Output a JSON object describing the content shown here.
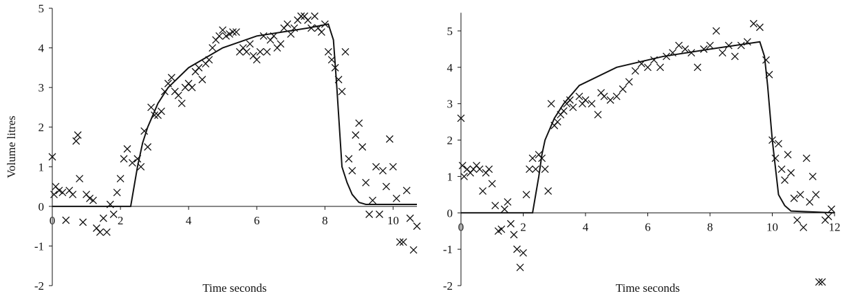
{
  "chart_data": [
    {
      "type": "scatter",
      "x_label": "Time seconds",
      "y_label": "Volume litres",
      "xlim": [
        0,
        10.7
      ],
      "ylim": [
        -2,
        5
      ],
      "xticks": [
        0,
        2,
        4,
        6,
        8,
        10
      ],
      "yticks": [
        -2,
        -1,
        0,
        1,
        2,
        3,
        4,
        5
      ],
      "color": "#111111",
      "series": [
        {
          "type": "scatter",
          "x": [
            0,
            0.05,
            0.1,
            0.2,
            0.3,
            0.4,
            0.5,
            0.6,
            0.7,
            0.75,
            0.8,
            0.9,
            1.0,
            1.1,
            1.2,
            1.3,
            1.4,
            1.5,
            1.6,
            1.7,
            1.8,
            1.9,
            2.0,
            2.1,
            2.2,
            2.35,
            2.5,
            2.6,
            2.7,
            2.8,
            2.9,
            3.0,
            3.1,
            3.2,
            3.3,
            3.4,
            3.5,
            3.6,
            3.7,
            3.8,
            3.9,
            4.0,
            4.1,
            4.2,
            4.3,
            4.4,
            4.5,
            4.6,
            4.7,
            4.8,
            4.9,
            5.0,
            5.1,
            5.2,
            5.3,
            5.4,
            5.5,
            5.6,
            5.7,
            5.8,
            5.9,
            6.0,
            6.1,
            6.2,
            6.3,
            6.4,
            6.5,
            6.6,
            6.7,
            6.8,
            6.9,
            7.0,
            7.1,
            7.2,
            7.3,
            7.4,
            7.5,
            7.6,
            7.7,
            7.8,
            7.9,
            8.0,
            8.1,
            8.2,
            8.3,
            8.4,
            8.5,
            8.6,
            8.7,
            8.8,
            8.9,
            9.0,
            9.1,
            9.2,
            9.3,
            9.4,
            9.5,
            9.6,
            9.7,
            9.8,
            9.9,
            10.0,
            10.1,
            10.2,
            10.3,
            10.4,
            10.5,
            10.6,
            10.7
          ],
          "values": [
            1.25,
            0.3,
            0.5,
            0.4,
            0.35,
            -0.35,
            0.4,
            0.3,
            1.65,
            1.8,
            0.7,
            -0.4,
            0.3,
            0.2,
            0.15,
            -0.55,
            -0.65,
            -0.3,
            -0.65,
            0.05,
            -0.2,
            0.35,
            0.7,
            1.2,
            1.45,
            1.1,
            1.2,
            1.0,
            1.9,
            1.5,
            2.5,
            2.3,
            2.3,
            2.4,
            2.9,
            3.1,
            3.25,
            2.9,
            2.8,
            2.6,
            3.0,
            3.1,
            3.0,
            3.4,
            3.5,
            3.2,
            3.6,
            3.7,
            4.0,
            4.2,
            4.3,
            4.45,
            4.3,
            4.35,
            4.4,
            4.4,
            3.9,
            4.0,
            3.9,
            4.1,
            3.8,
            3.7,
            3.9,
            4.3,
            3.9,
            4.2,
            4.3,
            4.0,
            4.1,
            4.5,
            4.6,
            4.35,
            4.5,
            4.7,
            4.8,
            4.8,
            4.7,
            4.5,
            4.8,
            4.5,
            4.4,
            4.6,
            3.9,
            3.7,
            3.5,
            3.2,
            2.9,
            3.9,
            1.2,
            0.9,
            1.8,
            2.1,
            1.5,
            0.6,
            -0.2,
            0.15,
            1.0,
            -0.2,
            0.9,
            0.5,
            1.7,
            1.0,
            0.2,
            -0.9,
            -0.9,
            0.4,
            -0.3,
            -1.1,
            -0.5
          ]
        },
        {
          "type": "line",
          "x": [
            0,
            2.3,
            2.4,
            2.5,
            2.65,
            2.8,
            3.1,
            3.4,
            4.0,
            5.0,
            6.0,
            7.5,
            8.1,
            8.25,
            8.35,
            8.5,
            8.65,
            8.8,
            9.0,
            9.2,
            10.7
          ],
          "values": [
            0,
            0,
            0.5,
            1.0,
            1.6,
            2.0,
            2.6,
            3.0,
            3.5,
            4.0,
            4.3,
            4.5,
            4.6,
            4.2,
            3.0,
            1.0,
            0.6,
            0.3,
            0.1,
            0.05,
            0.05
          ]
        }
      ]
    },
    {
      "type": "scatter",
      "x_label": "Time seconds",
      "xlim": [
        0,
        12
      ],
      "ylim": [
        -2,
        5.5
      ],
      "xticks": [
        0,
        2,
        4,
        6,
        8,
        10,
        12
      ],
      "yticks": [
        -2,
        -1,
        0,
        1,
        2,
        3,
        4,
        5
      ],
      "color": "#111111",
      "series": [
        {
          "type": "scatter",
          "x": [
            0,
            0.05,
            0.1,
            0.2,
            0.3,
            0.4,
            0.5,
            0.6,
            0.7,
            0.8,
            0.9,
            1.0,
            1.1,
            1.2,
            1.3,
            1.4,
            1.5,
            1.6,
            1.7,
            1.8,
            1.9,
            2.0,
            2.1,
            2.2,
            2.3,
            2.4,
            2.5,
            2.6,
            2.7,
            2.8,
            2.9,
            3.0,
            3.1,
            3.2,
            3.3,
            3.4,
            3.5,
            3.6,
            3.8,
            3.9,
            4.0,
            4.2,
            4.4,
            4.5,
            4.6,
            4.8,
            5.0,
            5.2,
            5.4,
            5.6,
            5.8,
            6.0,
            6.2,
            6.4,
            6.6,
            6.8,
            7.0,
            7.2,
            7.4,
            7.6,
            7.8,
            8.0,
            8.2,
            8.4,
            8.6,
            8.8,
            9.0,
            9.2,
            9.4,
            9.6,
            9.8,
            9.9,
            10.0,
            10.1,
            10.2,
            10.3,
            10.4,
            10.5,
            10.6,
            10.7,
            10.8,
            10.9,
            11.0,
            11.1,
            11.2,
            11.3,
            11.4,
            11.5,
            11.6,
            11.7,
            11.8,
            11.9
          ],
          "values": [
            2.6,
            1.3,
            1.0,
            1.2,
            1.1,
            1.2,
            1.3,
            1.2,
            0.6,
            1.1,
            1.2,
            0.8,
            0.2,
            -0.5,
            -0.45,
            0.1,
            0.3,
            -0.3,
            -0.6,
            -1.0,
            -1.5,
            -1.1,
            0.5,
            1.2,
            1.5,
            1.2,
            1.6,
            1.5,
            1.2,
            0.6,
            3.0,
            2.4,
            2.5,
            2.7,
            2.8,
            3.0,
            3.1,
            2.9,
            3.2,
            3.0,
            3.1,
            3.0,
            2.7,
            3.3,
            3.2,
            3.1,
            3.2,
            3.4,
            3.6,
            3.9,
            4.1,
            4.0,
            4.2,
            4.0,
            4.3,
            4.4,
            4.6,
            4.5,
            4.4,
            4.0,
            4.5,
            4.6,
            5.0,
            4.4,
            4.6,
            4.3,
            4.6,
            4.7,
            5.2,
            5.1,
            4.2,
            3.8,
            2.0,
            1.5,
            1.9,
            1.2,
            0.9,
            1.6,
            1.1,
            0.4,
            -0.2,
            0.5,
            -0.4,
            1.5,
            0.3,
            1.0,
            0.5,
            -1.9,
            -1.9,
            -0.2,
            -0.1,
            0.1
          ]
        },
        {
          "type": "line",
          "x": [
            0,
            2.3,
            2.4,
            2.5,
            2.6,
            2.7,
            3.0,
            3.3,
            3.8,
            5.0,
            6.5,
            8.0,
            9.6,
            9.75,
            9.85,
            10.0,
            10.2,
            10.4,
            10.6,
            12
          ],
          "values": [
            0,
            0,
            0.5,
            1.0,
            1.6,
            2.0,
            2.6,
            3.0,
            3.5,
            4.0,
            4.3,
            4.5,
            4.7,
            4.3,
            3.5,
            2.0,
            0.5,
            0.2,
            0.05,
            0
          ]
        }
      ]
    }
  ]
}
